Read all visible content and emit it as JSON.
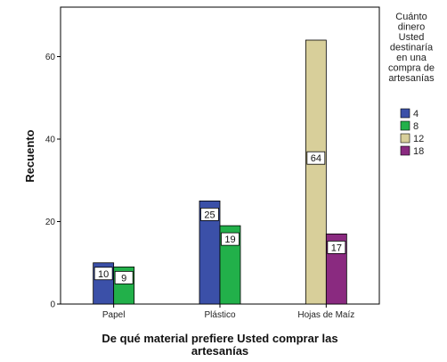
{
  "chart_data": {
    "type": "bar",
    "categories": [
      "Papel",
      "Plástico",
      "Hojas de Maíz"
    ],
    "series": [
      {
        "name": "4",
        "color": "#3b50a8",
        "values": [
          10,
          25,
          null
        ]
      },
      {
        "name": "8",
        "color": "#22b04a",
        "values": [
          9,
          19,
          null
        ]
      },
      {
        "name": "12",
        "color": "#d8cf9a",
        "values": [
          null,
          null,
          64
        ]
      },
      {
        "name": "18",
        "color": "#8a2a80",
        "values": [
          null,
          null,
          17
        ]
      }
    ],
    "xlabel": "De qué material prefiere Usted comprar las artesanías",
    "ylabel": "Recuento",
    "ylim": [
      0,
      72
    ],
    "yticks": [
      0,
      20,
      40,
      60
    ],
    "legend_title": "Cuánto dinero Usted destinaría en una compra de artesanías",
    "legend_position": "right",
    "grid": false,
    "data_labels": true
  }
}
